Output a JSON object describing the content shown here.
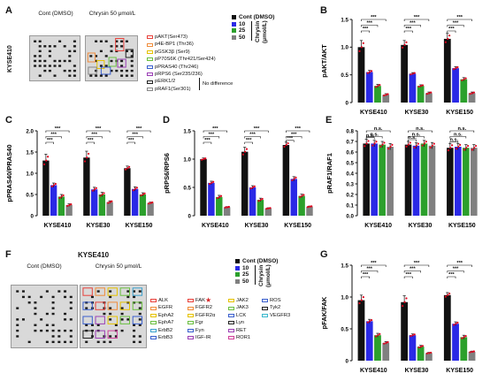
{
  "panels": {
    "a": "A",
    "b": "B",
    "c": "C",
    "d": "D",
    "e": "E",
    "f": "F",
    "g": "G"
  },
  "colors": {
    "control": "#111111",
    "dose10": "#2a29e6",
    "dose25": "#2ca02c",
    "dose50": "#808080",
    "dot": "#e0001b",
    "blot_bg": "#d9d9d9",
    "blot_spot": "#1a1a1a"
  },
  "legend": {
    "title": "Cont (DMSO)",
    "doses": [
      "10",
      "25",
      "50"
    ],
    "unit_line1": "Chrysin",
    "unit_line2": "(μmol/L)"
  },
  "array_a": {
    "cell_line": "KYSE410",
    "blots": [
      {
        "title": "Cont (DMSO)"
      },
      {
        "title": "Chrysin 50 μmol/L"
      }
    ],
    "antibodies": [
      {
        "name": "pAKT(Ser473)",
        "color": "#e8413b"
      },
      {
        "name": "p4E-BP1 (Thr36)",
        "color": "#f08c3a"
      },
      {
        "name": "pGSK3β (Ser9)",
        "color": "#e6c200"
      },
      {
        "name": "pP70S6K (Thr421/Ser424)",
        "color": "#6abf40"
      },
      {
        "name": "pPRAS40 (Thr246)",
        "color": "#3a5fcd"
      },
      {
        "name": "pRPS6 (Ser235/236)",
        "color": "#9b3fb5"
      },
      {
        "name": "pERK1/2",
        "color": "#222222"
      },
      {
        "name": "pRAF1(Ser301)",
        "color": "#888888"
      }
    ],
    "no_difference": "No difference"
  },
  "array_f": {
    "cell_line": "KYSE410",
    "blots": [
      {
        "title": "Cont (DMSO)"
      },
      {
        "title": "Chrysin 50 μmol/L"
      }
    ],
    "columns": [
      [
        {
          "name": "ALK",
          "color": "#e8413b"
        },
        {
          "name": "EGFR",
          "color": "#f08c3a"
        },
        {
          "name": "EphA2",
          "color": "#e6c200"
        },
        {
          "name": "EphA7",
          "color": "#6abf40"
        },
        {
          "name": "ErbB2",
          "color": "#3aa0cd"
        },
        {
          "name": "ErbB3",
          "color": "#3a5fcd"
        }
      ],
      [
        {
          "name": "FAK",
          "color": "#e8413b"
        },
        {
          "name": "FGFR2",
          "color": "#f08c3a"
        },
        {
          "name": "FGFR2α",
          "color": "#e6c200"
        },
        {
          "name": "Fgr",
          "color": "#6abf40"
        },
        {
          "name": "Fyn",
          "color": "#3a5fcd"
        },
        {
          "name": "IGF-IR",
          "color": "#9b3fb5"
        }
      ],
      [
        {
          "name": "JAK2",
          "color": "#e6c200"
        },
        {
          "name": "JAK3",
          "color": "#6abf40"
        },
        {
          "name": "LCK",
          "color": "#3a5fcd"
        },
        {
          "name": "Lyn",
          "color": "#222222"
        },
        {
          "name": "RET",
          "color": "#9b3fb5"
        },
        {
          "name": "ROR1",
          "color": "#d0409a"
        }
      ],
      [
        {
          "name": "ROS",
          "color": "#3a5fcd"
        },
        {
          "name": "Tyk2",
          "color": "#222222"
        },
        {
          "name": "VEGFR3",
          "color": "#3ab8cd"
        }
      ]
    ],
    "highlight_symbol": "★"
  },
  "chart_data": [
    {
      "id": "B",
      "type": "bar",
      "ylabel": "pAKT/AKT",
      "ylim": [
        0,
        1.5
      ],
      "yticks": [
        0,
        0.5,
        1.0,
        1.5
      ],
      "categories": [
        "KYSE410",
        "KYSE30",
        "KYSE150"
      ],
      "series": [
        {
          "name": "Cont (DMSO)",
          "values": [
            1.0,
            1.04,
            1.15
          ]
        },
        {
          "name": "10",
          "values": [
            0.55,
            0.52,
            0.62
          ]
        },
        {
          "name": "25",
          "values": [
            0.3,
            0.3,
            0.42
          ]
        },
        {
          "name": "50",
          "values": [
            0.14,
            0.17,
            0.17
          ]
        }
      ],
      "errors": [
        [
          0.12,
          0.08,
          0.1
        ],
        [
          0.03,
          0.02,
          0.03
        ],
        [
          0.03,
          0.02,
          0.03
        ],
        [
          0.02,
          0.02,
          0.02
        ]
      ],
      "significance": [
        "***",
        "***",
        "***"
      ]
    },
    {
      "id": "C",
      "type": "bar",
      "ylabel": "pPRAS40/PRAS40",
      "ylim": [
        0,
        2.0
      ],
      "yticks": [
        0,
        0.5,
        1.0,
        1.5,
        2.0
      ],
      "categories": [
        "KYSE410",
        "KYSE30",
        "KYSE150"
      ],
      "series": [
        {
          "name": "Cont (DMSO)",
          "values": [
            1.3,
            1.37,
            1.12
          ]
        },
        {
          "name": "10",
          "values": [
            0.72,
            0.62,
            0.63
          ]
        },
        {
          "name": "25",
          "values": [
            0.45,
            0.5,
            0.5
          ]
        },
        {
          "name": "50",
          "values": [
            0.25,
            0.32,
            0.3
          ]
        }
      ],
      "errors": [
        [
          0.15,
          0.15,
          0.05
        ],
        [
          0.05,
          0.05,
          0.05
        ],
        [
          0.05,
          0.05,
          0.04
        ],
        [
          0.03,
          0.03,
          0.02
        ]
      ],
      "significance": [
        "***",
        "***",
        "***"
      ]
    },
    {
      "id": "D",
      "type": "bar",
      "ylabel": "pRPS6/RPS6",
      "ylim": [
        0,
        1.5
      ],
      "yticks": [
        0,
        0.5,
        1.0,
        1.5
      ],
      "categories": [
        "KYSE410",
        "KYSE30",
        "KYSE150"
      ],
      "series": [
        {
          "name": "Cont (DMSO)",
          "values": [
            1.0,
            1.13,
            1.25
          ]
        },
        {
          "name": "10",
          "values": [
            0.58,
            0.5,
            0.65
          ]
        },
        {
          "name": "25",
          "values": [
            0.33,
            0.28,
            0.35
          ]
        },
        {
          "name": "50",
          "values": [
            0.15,
            0.13,
            0.16
          ]
        }
      ],
      "errors": [
        [
          0.02,
          0.08,
          0.05
        ],
        [
          0.03,
          0.03,
          0.04
        ],
        [
          0.03,
          0.03,
          0.03
        ],
        [
          0.01,
          0.01,
          0.01
        ]
      ],
      "significance": [
        "***",
        "***",
        "***"
      ]
    },
    {
      "id": "E",
      "type": "bar",
      "ylabel": "pRAF1/RAF1",
      "ylim": [
        0,
        0.8
      ],
      "yticks": [
        0,
        0.1,
        0.2,
        0.3,
        0.4,
        0.5,
        0.6,
        0.7,
        0.8
      ],
      "categories": [
        "KYSE410",
        "KYSE30",
        "KYSE150"
      ],
      "series": [
        {
          "name": "Cont (DMSO)",
          "values": [
            0.68,
            0.67,
            0.64
          ]
        },
        {
          "name": "10",
          "values": [
            0.68,
            0.66,
            0.65
          ]
        },
        {
          "name": "25",
          "values": [
            0.67,
            0.68,
            0.64
          ]
        },
        {
          "name": "50",
          "values": [
            0.65,
            0.66,
            0.64
          ]
        }
      ],
      "errors": [
        [
          0.04,
          0.03,
          0.04
        ],
        [
          0.03,
          0.03,
          0.03
        ],
        [
          0.03,
          0.03,
          0.03
        ],
        [
          0.03,
          0.03,
          0.03
        ]
      ],
      "significance": [
        "n.s.",
        "n.s.",
        "n.s."
      ]
    },
    {
      "id": "G",
      "type": "bar",
      "ylabel": "pFAK/FAK",
      "ylim": [
        0,
        1.5
      ],
      "yticks": [
        0,
        0.5,
        1.0,
        1.5
      ],
      "categories": [
        "KYSE410",
        "KYSE30",
        "KYSE150"
      ],
      "series": [
        {
          "name": "Cont (DMSO)",
          "values": [
            0.95,
            0.92,
            1.03
          ]
        },
        {
          "name": "10",
          "values": [
            0.62,
            0.4,
            0.58
          ]
        },
        {
          "name": "25",
          "values": [
            0.4,
            0.22,
            0.37
          ]
        },
        {
          "name": "50",
          "values": [
            0.28,
            0.12,
            0.14
          ]
        }
      ],
      "errors": [
        [
          0.08,
          0.1,
          0.04
        ],
        [
          0.03,
          0.02,
          0.03
        ],
        [
          0.03,
          0.02,
          0.03
        ],
        [
          0.02,
          0.01,
          0.01
        ]
      ],
      "significance": [
        "***",
        "***",
        "***"
      ]
    }
  ]
}
